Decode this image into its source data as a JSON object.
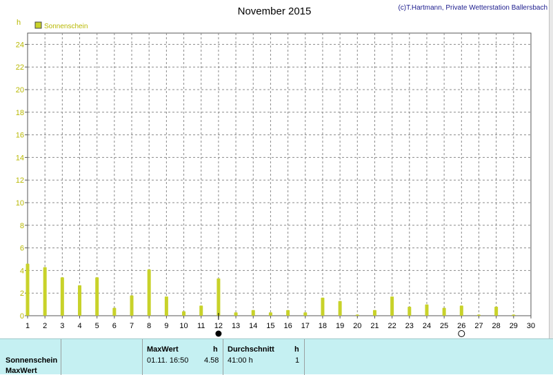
{
  "chart_data": {
    "type": "bar",
    "title": "November 2015",
    "credit": "(c)T.Hartmann, Private Wetterstation Ballersbach",
    "ylabel": "h",
    "legend": "Sonnenschein",
    "legend_position": "top-left",
    "grid": true,
    "ylim": [
      0,
      25
    ],
    "yticks": [
      0,
      2,
      4,
      6,
      8,
      10,
      12,
      14,
      16,
      18,
      20,
      22,
      24
    ],
    "xlim": [
      1,
      30
    ],
    "xticks": [
      1,
      2,
      3,
      4,
      5,
      6,
      7,
      8,
      9,
      10,
      11,
      12,
      13,
      14,
      15,
      16,
      17,
      18,
      19,
      20,
      21,
      22,
      23,
      24,
      25,
      26,
      27,
      28,
      29,
      30
    ],
    "x": [
      1,
      2,
      3,
      4,
      5,
      6,
      7,
      8,
      9,
      10,
      11,
      12,
      13,
      14,
      15,
      16,
      17,
      18,
      19,
      20,
      21,
      22,
      23,
      24,
      25,
      26,
      27,
      28,
      29
    ],
    "values": [
      4.6,
      4.3,
      3.4,
      2.7,
      3.4,
      0.7,
      1.8,
      4.1,
      1.7,
      0.4,
      0.9,
      3.3,
      0.3,
      0.5,
      0.3,
      0.5,
      0.3,
      1.6,
      1.3,
      0.1,
      0.5,
      1.7,
      0.8,
      1.0,
      0.7,
      0.9,
      0.1,
      0.8,
      0.1
    ],
    "color": "#c8d22a",
    "moon_phases": [
      {
        "day": 12,
        "phase": "new-moon"
      },
      {
        "day": 26,
        "phase": "full-moon"
      }
    ]
  },
  "summary": {
    "row_label_1": "Sonnenschein",
    "row_label_2": "MaxWert",
    "maxwert_header": "MaxWert",
    "maxwert_unit": "h",
    "maxwert_date": "01.11.  16:50",
    "maxwert_value": "4.58",
    "avg_header": "Durchschnitt",
    "avg_unit": "h",
    "avg_value": "41:00 h",
    "avg_count": "1"
  }
}
